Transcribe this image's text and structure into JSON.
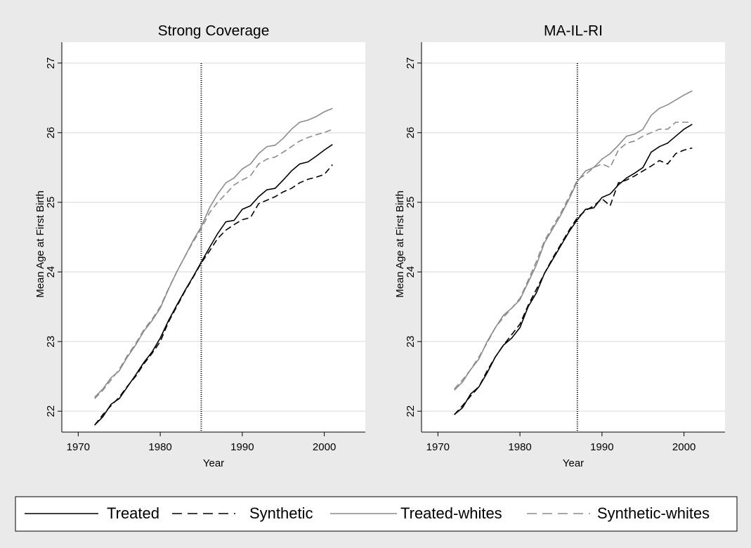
{
  "chart_data": [
    {
      "type": "line",
      "title": "Strong Coverage",
      "x_label": "Year",
      "y_label": "Mean Age at First Birth",
      "x": [
        1972,
        1973,
        1974,
        1975,
        1976,
        1977,
        1978,
        1979,
        1980,
        1981,
        1982,
        1983,
        1984,
        1985,
        1986,
        1987,
        1988,
        1989,
        1990,
        1991,
        1992,
        1993,
        1994,
        1995,
        1996,
        1997,
        1998,
        1999,
        2000,
        2001
      ],
      "series": [
        {
          "name": "Treated",
          "color": "#000000",
          "dash": false,
          "values": [
            21.8,
            21.92,
            22.1,
            22.18,
            22.35,
            22.52,
            22.7,
            22.85,
            23.05,
            23.3,
            23.52,
            23.73,
            23.93,
            24.14,
            24.35,
            24.55,
            24.72,
            24.74,
            24.9,
            24.95,
            25.08,
            25.18,
            25.2,
            25.32,
            25.45,
            25.55,
            25.58,
            25.66,
            25.75,
            25.83
          ]
        },
        {
          "name": "Synthetic",
          "color": "#000000",
          "dash": true,
          "values": [
            21.8,
            21.95,
            22.08,
            22.2,
            22.36,
            22.5,
            22.68,
            22.83,
            23.0,
            23.28,
            23.5,
            23.72,
            23.92,
            24.13,
            24.3,
            24.48,
            24.6,
            24.68,
            24.75,
            24.78,
            24.98,
            25.03,
            25.08,
            25.15,
            25.2,
            25.28,
            25.33,
            25.36,
            25.4,
            25.54
          ]
        },
        {
          "name": "Treated-whites",
          "color": "#8c8c8c",
          "dash": false,
          "values": [
            22.2,
            22.32,
            22.48,
            22.58,
            22.78,
            22.95,
            23.15,
            23.3,
            23.48,
            23.75,
            24.0,
            24.22,
            24.45,
            24.65,
            24.92,
            25.12,
            25.28,
            25.35,
            25.48,
            25.55,
            25.7,
            25.8,
            25.82,
            25.92,
            26.05,
            26.15,
            26.18,
            26.23,
            26.3,
            26.35
          ]
        },
        {
          "name": "Synthetic-whites",
          "color": "#8c8c8c",
          "dash": true,
          "values": [
            22.18,
            22.3,
            22.45,
            22.6,
            22.8,
            22.97,
            23.17,
            23.32,
            23.5,
            23.76,
            24.0,
            24.22,
            24.43,
            24.62,
            24.85,
            25.0,
            25.12,
            25.25,
            25.32,
            25.38,
            25.55,
            25.62,
            25.65,
            25.72,
            25.8,
            25.88,
            25.93,
            25.97,
            26.0,
            26.05
          ]
        }
      ],
      "vline": 1985,
      "xlim": [
        1968,
        2005
      ],
      "xticks": [
        1970,
        1980,
        1990,
        2000
      ],
      "ylim": [
        21.7,
        27.3
      ],
      "yticks": [
        22,
        23,
        24,
        25,
        26,
        27
      ],
      "grid": true
    },
    {
      "type": "line",
      "title": "MA-IL-RI",
      "x_label": "Year",
      "y_label": "Mean Age at First Birth",
      "x": [
        1972,
        1973,
        1974,
        1975,
        1976,
        1977,
        1978,
        1979,
        1980,
        1981,
        1982,
        1983,
        1984,
        1985,
        1986,
        1987,
        1988,
        1989,
        1990,
        1991,
        1992,
        1993,
        1994,
        1995,
        1996,
        1997,
        1998,
        1999,
        2000,
        2001
      ],
      "series": [
        {
          "name": "Treated",
          "color": "#000000",
          "dash": false,
          "values": [
            21.95,
            22.05,
            22.25,
            22.35,
            22.55,
            22.78,
            22.95,
            23.05,
            23.2,
            23.5,
            23.7,
            23.98,
            24.18,
            24.38,
            24.58,
            24.75,
            24.9,
            24.92,
            25.07,
            25.12,
            25.25,
            25.35,
            25.42,
            25.5,
            25.72,
            25.8,
            25.85,
            25.95,
            26.05,
            26.12
          ]
        },
        {
          "name": "Synthetic",
          "color": "#000000",
          "dash": true,
          "values": [
            21.95,
            22.08,
            22.22,
            22.35,
            22.58,
            22.78,
            22.95,
            23.1,
            23.25,
            23.52,
            23.75,
            23.98,
            24.2,
            24.4,
            24.6,
            24.78,
            24.88,
            24.95,
            25.05,
            24.95,
            25.28,
            25.32,
            25.38,
            25.45,
            25.52,
            25.6,
            25.55,
            25.7,
            25.75,
            25.78
          ]
        },
        {
          "name": "Treated-whites",
          "color": "#8c8c8c",
          "dash": false,
          "values": [
            22.3,
            22.42,
            22.6,
            22.75,
            23.0,
            23.2,
            23.38,
            23.48,
            23.6,
            23.85,
            24.1,
            24.42,
            24.62,
            24.82,
            25.05,
            25.3,
            25.45,
            25.5,
            25.62,
            25.7,
            25.82,
            25.95,
            25.98,
            26.05,
            26.25,
            26.35,
            26.4,
            26.47,
            26.54,
            26.6
          ]
        },
        {
          "name": "Synthetic-whites",
          "color": "#8c8c8c",
          "dash": true,
          "values": [
            22.32,
            22.45,
            22.6,
            22.78,
            22.98,
            23.2,
            23.35,
            23.48,
            23.62,
            23.88,
            24.15,
            24.45,
            24.65,
            24.85,
            25.08,
            25.32,
            25.4,
            25.5,
            25.55,
            25.5,
            25.75,
            25.85,
            25.88,
            25.95,
            26.0,
            26.05,
            26.05,
            26.15,
            26.15,
            26.15
          ]
        }
      ],
      "vline": 1987,
      "xlim": [
        1968,
        2005
      ],
      "xticks": [
        1970,
        1980,
        1990,
        2000
      ],
      "ylim": [
        21.7,
        27.3
      ],
      "yticks": [
        22,
        23,
        24,
        25,
        26,
        27
      ],
      "grid": true
    }
  ]
}
